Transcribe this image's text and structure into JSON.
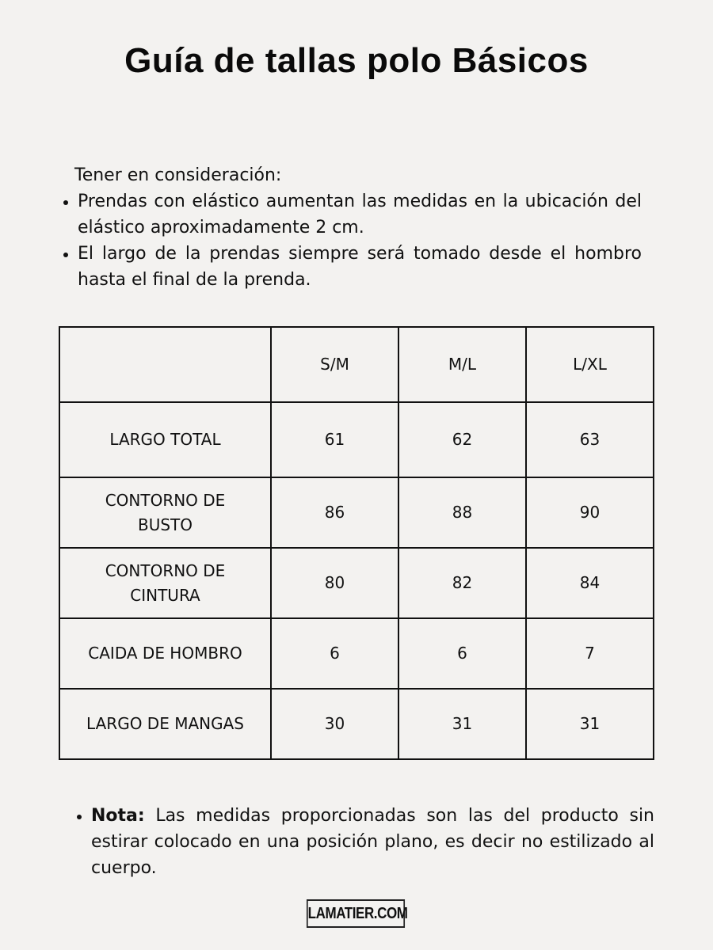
{
  "title": "Guía de tallas polo Básicos",
  "intro": "Tener en consideración:",
  "considerations": [
    "Prendas con elástico aumentan las medidas en la ubicación del elástico aproximadamente 2 cm.",
    "El largo de la prendas siempre será tomado desde el hombro hasta el final de la prenda."
  ],
  "table": {
    "headers": [
      "",
      "S/M",
      "M/L",
      "L/XL"
    ],
    "rows": [
      {
        "label": "LARGO TOTAL",
        "values": [
          "61",
          "62",
          "63"
        ]
      },
      {
        "label": "CONTORNO DE BUSTO",
        "values": [
          "86",
          "88",
          "90"
        ]
      },
      {
        "label": "CONTORNO DE CINTURA",
        "values": [
          "80",
          "82",
          "84"
        ]
      },
      {
        "label": "CAIDA DE HOMBRO",
        "values": [
          "6",
          "6",
          "7"
        ]
      },
      {
        "label": "LARGO DE MANGAS",
        "values": [
          "30",
          "31",
          "31"
        ]
      }
    ]
  },
  "note": {
    "label": "Nota:",
    "text": " Las medidas proporcionadas son las del producto sin estirar colocado en una posición plano, es decir no estilizado al cuerpo."
  },
  "logo": "LAMATIER.COM",
  "colors": {
    "background": "#f3f2f0",
    "text": "#111111"
  }
}
